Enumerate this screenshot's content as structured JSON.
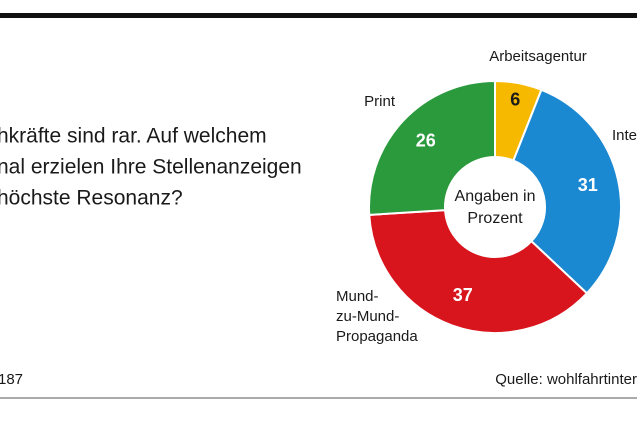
{
  "chart_data": {
    "type": "donut",
    "title": [
      "hkräfte sind rar. Auf welchem",
      "nal erzielen Ihre Stellenanzeigen",
      "höchste Resonanz?"
    ],
    "categories": [
      [
        "Arbeitsagentur"
      ],
      [
        "Inte"
      ],
      [
        "Mund-",
        "zu-Mund-",
        "Propaganda"
      ],
      [
        "Print"
      ]
    ],
    "values": [
      6,
      31,
      37,
      26
    ],
    "colors": [
      "#f6b900",
      "#1b88d2",
      "#d8141d",
      "#2a9a3d"
    ],
    "center_label": [
      "Angaben in",
      "Prozent"
    ],
    "note": "187",
    "source": "Quelle: wohlfahrtinter"
  }
}
